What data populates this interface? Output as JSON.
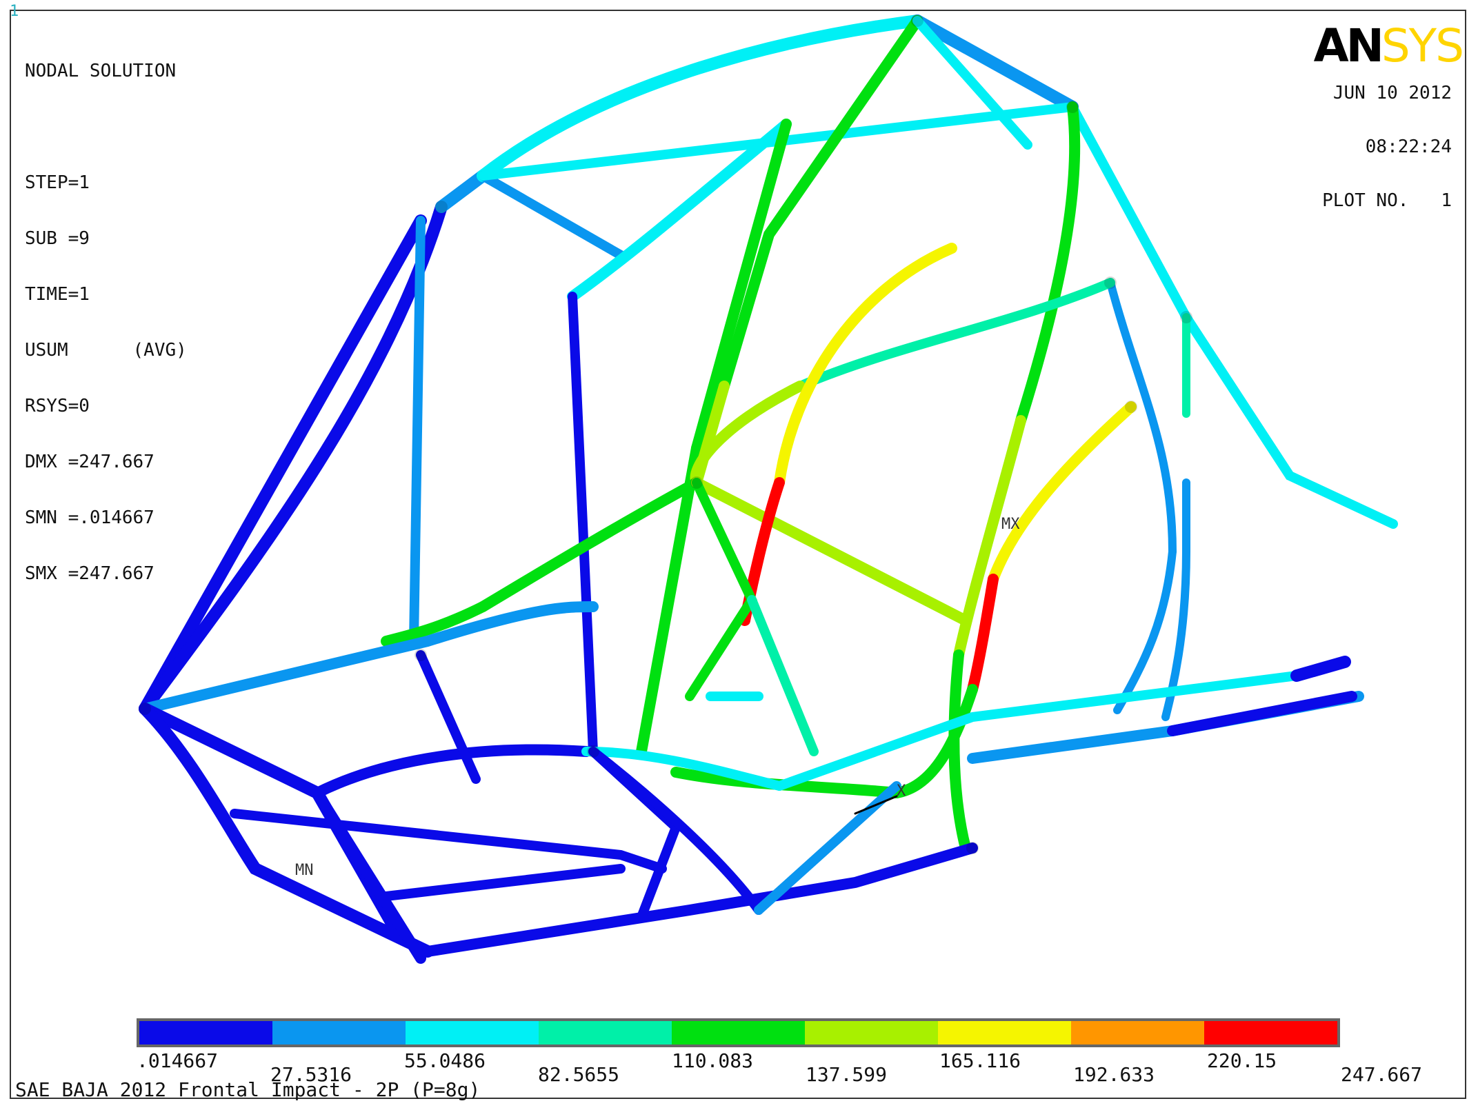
{
  "window_number": "1",
  "info_lines": [
    "NODAL SOLUTION",
    "",
    "STEP=1",
    "SUB =9",
    "TIME=1",
    "USUM      (AVG)",
    "RSYS=0",
    "DMX =247.667",
    "SMN =.014667",
    "SMX =247.667"
  ],
  "logo": {
    "part1": "AN",
    "part2": "SYS"
  },
  "stamp": {
    "date": "JUN 10 2012",
    "time": "08:22:24",
    "plot": "PLOT NO.   1"
  },
  "legend": {
    "colors": [
      "#0a0ae8",
      "#0a96f0",
      "#00f0f5",
      "#00f0a8",
      "#00e010",
      "#a8f000",
      "#f5f500",
      "#ff9600",
      "#ff0000"
    ],
    "labels": [
      ".014667",
      "27.5316",
      "55.0486",
      "82.5655",
      "110.083",
      "137.599",
      "165.116",
      "192.633",
      "220.15",
      "247.667"
    ]
  },
  "markers": {
    "max": "MX",
    "min": "MN",
    "axis_x": "X"
  },
  "caption": "SAE BAJA 2012 Frontal Impact - 2P (P=8g)"
}
